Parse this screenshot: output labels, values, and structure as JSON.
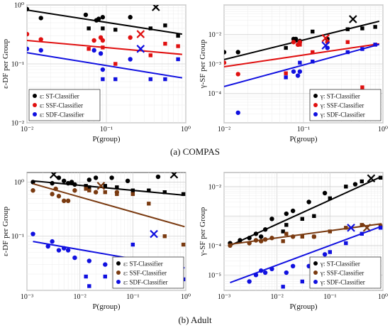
{
  "captions": {
    "a": "(a) COMPAS",
    "b": "(b) Adult"
  },
  "chart_data": [
    {
      "id": "compas-df",
      "type": "scatter",
      "scale": "loglog",
      "xlim": [
        0.01,
        1
      ],
      "ylim": [
        0.01,
        1
      ],
      "xlabel": "P(group)",
      "ylabel": "ε-DF per Group",
      "xticks": [
        0.01,
        0.1,
        1
      ],
      "xticklabels": [
        "10⁻²",
        "10⁻¹",
        "10⁰"
      ],
      "yticks": [
        0.01,
        0.1,
        1
      ],
      "yticklabels": [
        "10⁻²",
        "10⁻¹",
        "10⁰"
      ],
      "grid": true,
      "legend_position": "bottom-left",
      "series": [
        {
          "name": "ε: ST-Classifier",
          "color": "#000000",
          "dots": [
            [
              0.01,
              0.85
            ],
            [
              0.015,
              0.6
            ],
            [
              0.055,
              0.68
            ],
            [
              0.075,
              0.55
            ],
            [
              0.08,
              0.58
            ],
            [
              0.09,
              0.62
            ],
            [
              0.2,
              0.62
            ]
          ],
          "squares": [
            [
              0.06,
              0.4
            ],
            [
              0.09,
              0.4
            ],
            [
              0.13,
              0.38
            ],
            [
              0.36,
              0.4
            ],
            [
              0.55,
              0.45
            ],
            [
              0.8,
              0.3
            ]
          ],
          "highlight": [
            0.42,
            0.92
          ],
          "fit": [
            [
              0.01,
              0.82
            ],
            [
              0.9,
              0.32
            ]
          ]
        },
        {
          "name": "ε: SSF-Classifier",
          "color": "#e01010",
          "dots": [
            [
              0.01,
              0.32
            ],
            [
              0.015,
              0.26
            ],
            [
              0.07,
              0.25
            ],
            [
              0.085,
              0.28
            ],
            [
              0.09,
              0.25
            ],
            [
              0.2,
              0.28
            ]
          ],
          "squares": [
            [
              0.06,
              0.18
            ],
            [
              0.09,
              0.19
            ],
            [
              0.13,
              0.1
            ],
            [
              0.36,
              0.14
            ],
            [
              0.55,
              0.22
            ],
            [
              0.8,
              0.2
            ]
          ],
          "highlight": [
            0.27,
            0.32
          ],
          "fit": [
            [
              0.01,
              0.25
            ],
            [
              0.9,
              0.145
            ]
          ]
        },
        {
          "name": "ε: SDF-Classifier",
          "color": "#1010e0",
          "dots": [
            [
              0.01,
              0.18
            ],
            [
              0.015,
              0.17
            ],
            [
              0.07,
              0.17
            ],
            [
              0.085,
              0.15
            ],
            [
              0.09,
              0.08
            ],
            [
              0.2,
              0.12
            ]
          ],
          "squares": [
            [
              0.06,
              0.033
            ],
            [
              0.09,
              0.055
            ],
            [
              0.13,
              0.055
            ],
            [
              0.36,
              0.055
            ],
            [
              0.55,
              0.055
            ],
            [
              0.8,
              0.12
            ]
          ],
          "highlight": [
            0.27,
            0.18
          ],
          "fit": [
            [
              0.01,
              0.155
            ],
            [
              0.9,
              0.058
            ]
          ]
        }
      ]
    },
    {
      "id": "compas-sf",
      "type": "scatter",
      "scale": "loglog",
      "xlim": [
        0.01,
        1
      ],
      "ylim": [
        1e-05,
        0.1
      ],
      "xlabel": "P(group)",
      "ylabel": "γ-SF per Group",
      "xticks": [
        0.01,
        0.1,
        1
      ],
      "xticklabels": [
        "10⁻²",
        "10⁻¹",
        "10⁰"
      ],
      "yticks": [
        0.0001,
        0.001,
        0.01
      ],
      "yticklabels": [
        "10⁻⁴",
        "10⁻³",
        "10⁻²"
      ],
      "grid": true,
      "legend_position": "bottom-right",
      "series": [
        {
          "name": "γ: ST-Classifier",
          "color": "#000000",
          "dots": [
            [
              0.01,
              0.0025
            ],
            [
              0.015,
              0.0025
            ],
            [
              0.075,
              0.007
            ],
            [
              0.08,
              0.007
            ],
            [
              0.09,
              0.006
            ],
            [
              0.2,
              0.007
            ]
          ],
          "squares": [
            [
              0.06,
              0.0035
            ],
            [
              0.09,
              0.0048
            ],
            [
              0.13,
              0.0125
            ],
            [
              0.36,
              0.015
            ],
            [
              0.55,
              0.016
            ],
            [
              0.8,
              0.018
            ]
          ],
          "highlight": [
            0.42,
            0.033
          ],
          "fit": [
            [
              0.01,
              0.0014
            ],
            [
              0.9,
              0.028
            ]
          ]
        },
        {
          "name": "γ: SSF-Classifier",
          "color": "#e01010",
          "dots": [
            [
              0.01,
              0.0011
            ],
            [
              0.015,
              0.00045
            ],
            [
              0.075,
              0.0055
            ],
            [
              0.085,
              0.0045
            ],
            [
              0.09,
              0.0055
            ],
            [
              0.2,
              0.0055
            ]
          ],
          "squares": [
            [
              0.06,
              0.00048
            ],
            [
              0.09,
              0.0045
            ],
            [
              0.13,
              0.0025
            ],
            [
              0.36,
              0.0055
            ],
            [
              0.55,
              0.00016
            ],
            [
              0.8,
              0.0045
            ]
          ],
          "highlight": [
            0.19,
            0.0075
          ],
          "fit": [
            [
              0.01,
              0.0008
            ],
            [
              0.9,
              0.0048
            ]
          ]
        },
        {
          "name": "γ: SDF-Classifier",
          "color": "#1010e0",
          "dots": [
            [
              0.015,
              2.2e-05
            ],
            [
              0.075,
              0.00055
            ],
            [
              0.085,
              0.0004
            ],
            [
              0.09,
              0.00055
            ],
            [
              0.2,
              0.0035
            ]
          ],
          "squares": [
            [
              0.06,
              0.00035
            ],
            [
              0.09,
              0.0011
            ],
            [
              0.13,
              0.0012
            ],
            [
              0.36,
              0.0025
            ],
            [
              0.55,
              0.0032
            ],
            [
              0.8,
              0.0045
            ]
          ],
          "highlight": [
            0.19,
            0.0042
          ],
          "fit": [
            [
              0.01,
              0.00017
            ],
            [
              0.9,
              0.0046
            ]
          ]
        }
      ]
    },
    {
      "id": "adult-df",
      "type": "scatter",
      "scale": "loglog",
      "xlim": [
        0.001,
        1
      ],
      "ylim": [
        0.01,
        1.5
      ],
      "xlabel": "P(group)",
      "ylabel": "ε-DF per Group",
      "xticks": [
        0.001,
        0.01,
        0.1,
        1
      ],
      "xticklabels": [
        "10⁻³",
        "10⁻²",
        "10⁻¹",
        "10⁰"
      ],
      "yticks": [
        0.1,
        1
      ],
      "yticklabels": [
        "10⁻¹",
        "10⁰"
      ],
      "grid": true,
      "legend_position": "bottom-right",
      "series": [
        {
          "name": "ε: ST-Classifier",
          "color": "#000000",
          "dots": [
            [
              0.0013,
              1.0
            ],
            [
              0.003,
              0.95
            ],
            [
              0.004,
              1.2
            ],
            [
              0.005,
              1.05
            ],
            [
              0.006,
              0.95
            ],
            [
              0.007,
              1.0
            ],
            [
              0.008,
              0.9
            ],
            [
              0.015,
              1.1
            ],
            [
              0.02,
              1.2
            ],
            [
              0.04,
              1.2
            ],
            [
              0.08,
              1.05
            ],
            [
              0.3,
              1.25
            ]
          ],
          "squares": [
            [
              0.013,
              0.85
            ],
            [
              0.015,
              0.8
            ],
            [
              0.03,
              0.85
            ],
            [
              0.05,
              0.8
            ],
            [
              0.1,
              0.7
            ],
            [
              0.2,
              0.7
            ],
            [
              0.4,
              0.65
            ],
            [
              0.9,
              0.6
            ]
          ],
          "highlight": [
            0.0032,
            1.38
          ],
          "highlight2": [
            0.6,
            1.38
          ],
          "fit": [
            [
              0.0013,
              1.05
            ],
            [
              0.95,
              0.57
            ]
          ]
        },
        {
          "name": "ε: SSF-Classifier",
          "color": "#7a3a10",
          "dots": [
            [
              0.0013,
              0.7
            ],
            [
              0.003,
              0.6
            ],
            [
              0.0035,
              0.75
            ],
            [
              0.004,
              0.55
            ],
            [
              0.005,
              0.45
            ],
            [
              0.006,
              0.45
            ],
            [
              0.008,
              0.7
            ],
            [
              0.02,
              0.65
            ],
            [
              0.05,
              0.65
            ]
          ],
          "squares": [
            [
              0.013,
              0.75
            ],
            [
              0.015,
              0.7
            ],
            [
              0.03,
              0.65
            ],
            [
              0.05,
              0.6
            ],
            [
              0.1,
              0.6
            ],
            [
              0.2,
              0.4
            ],
            [
              0.4,
              0.1
            ],
            [
              0.9,
              0.07
            ]
          ],
          "highlight": [
            0.025,
            0.85
          ],
          "fit": [
            [
              0.0013,
              0.93
            ],
            [
              0.95,
              0.15
            ]
          ]
        },
        {
          "name": "ε: SDF-Classifier",
          "color": "#1010e0",
          "dots": [
            [
              0.0013,
              0.11
            ],
            [
              0.0025,
              0.065
            ],
            [
              0.003,
              0.08
            ],
            [
              0.004,
              0.055
            ],
            [
              0.005,
              0.06
            ],
            [
              0.006,
              0.055
            ],
            [
              0.008,
              0.04
            ],
            [
              0.015,
              0.035
            ],
            [
              0.03,
              0.03
            ]
          ],
          "squares": [
            [
              0.013,
              0.018
            ],
            [
              0.015,
              0.012
            ],
            [
              0.03,
              0.018
            ],
            [
              0.05,
              0.012
            ],
            [
              0.1,
              0.07
            ],
            [
              0.2,
              0.018
            ],
            [
              0.4,
              0.014
            ],
            [
              0.9,
              0.016
            ]
          ],
          "highlight": [
            0.25,
            0.11
          ],
          "fit": [
            [
              0.0013,
              0.08
            ],
            [
              0.95,
              0.026
            ]
          ]
        }
      ]
    },
    {
      "id": "adult-sf",
      "type": "scatter",
      "scale": "loglog",
      "xlim": [
        0.001,
        1
      ],
      "ylim": [
        3e-06,
        0.03
      ],
      "xlabel": "P(group)",
      "ylabel": "γ-SF per Group",
      "xticks": [
        0.001,
        0.01,
        0.1,
        1
      ],
      "xticklabels": [
        "10⁻³",
        "10⁻²",
        "10⁻¹",
        "10⁰"
      ],
      "yticks": [
        1e-05,
        0.0001,
        0.01
      ],
      "yticklabels": [
        "10⁻⁵",
        "10⁻⁴",
        "10⁻²"
      ],
      "grid": true,
      "legend_position": "bottom-right",
      "series": [
        {
          "name": "γ: ST-Classifier",
          "color": "#000000",
          "dots": [
            [
              0.0013,
              0.00012
            ],
            [
              0.002,
              0.00015
            ],
            [
              0.003,
              0.00018
            ],
            [
              0.004,
              0.00025
            ],
            [
              0.005,
              0.0002
            ],
            [
              0.006,
              0.00035
            ],
            [
              0.008,
              0.0008
            ],
            [
              0.015,
              0.0012
            ],
            [
              0.02,
              0.0015
            ],
            [
              0.04,
              0.003
            ],
            [
              0.08,
              0.006
            ],
            [
              0.3,
              0.012
            ]
          ],
          "squares": [
            [
              0.013,
              0.0003
            ],
            [
              0.015,
              0.0005
            ],
            [
              0.03,
              0.0008
            ],
            [
              0.05,
              0.001
            ],
            [
              0.1,
              0.004
            ],
            [
              0.2,
              0.01
            ],
            [
              0.4,
              0.015
            ],
            [
              0.9,
              0.02
            ]
          ],
          "highlight": [
            0.6,
            0.019
          ],
          "fit": [
            [
              0.0013,
              0.0001
            ],
            [
              0.95,
              0.022
            ]
          ]
        },
        {
          "name": "γ: SSF-Classifier",
          "color": "#7a3a10",
          "dots": [
            [
              0.0013,
              0.0001
            ],
            [
              0.003,
              0.00012
            ],
            [
              0.004,
              0.00015
            ],
            [
              0.005,
              0.00014
            ],
            [
              0.006,
              0.00016
            ],
            [
              0.008,
              0.00018
            ],
            [
              0.02,
              0.0002
            ],
            [
              0.05,
              0.0002
            ]
          ],
          "squares": [
            [
              0.013,
              0.00014
            ],
            [
              0.015,
              0.00025
            ],
            [
              0.03,
              0.0002
            ],
            [
              0.05,
              0.0002
            ],
            [
              0.1,
              0.0003
            ],
            [
              0.2,
              0.0004
            ],
            [
              0.4,
              0.0005
            ],
            [
              0.9,
              0.00045
            ]
          ],
          "highlight": [
            0.5,
            0.0004
          ],
          "fit": [
            [
              0.0013,
              0.00011
            ],
            [
              0.95,
              0.00055
            ]
          ]
        },
        {
          "name": "γ: SDF-Classifier",
          "color": "#1010e0",
          "dots": [
            [
              0.003,
              6e-06
            ],
            [
              0.004,
              1e-05
            ],
            [
              0.005,
              1.4e-05
            ],
            [
              0.006,
              1.2e-05
            ],
            [
              0.008,
              1.6e-05
            ],
            [
              0.015,
              1.2e-05
            ],
            [
              0.02,
              2e-05
            ],
            [
              0.04,
              2e-05
            ],
            [
              0.08,
              5e-05
            ]
          ],
          "squares": [
            [
              0.013,
              4e-06
            ],
            [
              0.03,
              6e-06
            ],
            [
              0.05,
              1.2e-05
            ],
            [
              0.1,
              6e-05
            ],
            [
              0.2,
              0.00012
            ],
            [
              0.4,
              0.00025
            ],
            [
              0.9,
              0.0004
            ]
          ],
          "highlight": [
            0.25,
            0.0004
          ],
          "fit": [
            [
              0.0013,
              5.5e-06
            ],
            [
              0.95,
              0.00045
            ]
          ]
        }
      ]
    }
  ]
}
